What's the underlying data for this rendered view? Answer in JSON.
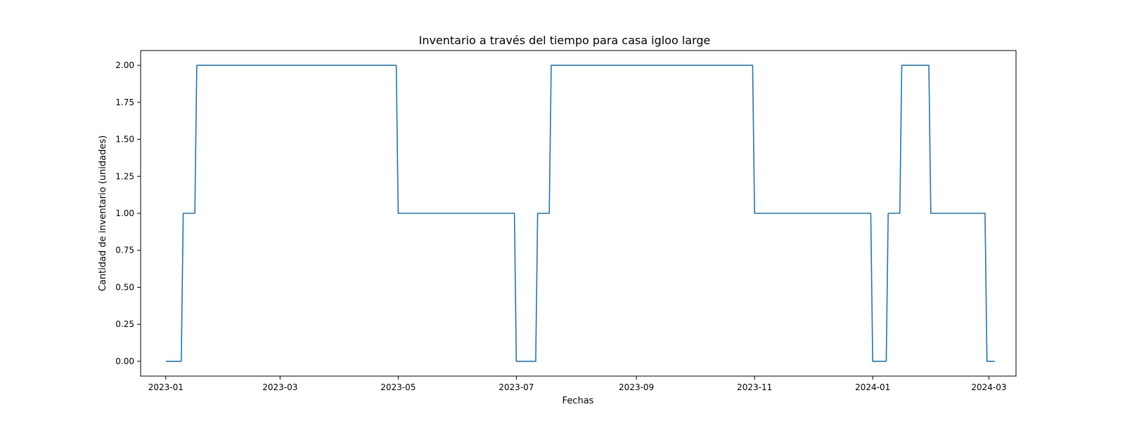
{
  "chart_data": {
    "type": "line",
    "title": "Inventario a través del tiempo para casa igloo large",
    "xlabel": "Fechas",
    "ylabel": "Cantidad de inventario (unidades)",
    "x_axis_type": "date",
    "xlim": [
      "2022-12-19",
      "2024-03-15"
    ],
    "ylim": [
      -0.1,
      2.1
    ],
    "x_ticks": [
      "2023-01",
      "2023-03",
      "2023-05",
      "2023-07",
      "2023-09",
      "2023-11",
      "2024-01",
      "2024-03"
    ],
    "y_ticks": [
      "0.00",
      "0.25",
      "0.50",
      "0.75",
      "1.00",
      "1.25",
      "1.50",
      "1.75",
      "2.00"
    ],
    "grid": false,
    "legend": false,
    "series": [
      {
        "color": "#1f77b4",
        "points": [
          [
            "2023-01-01",
            0
          ],
          [
            "2023-01-09",
            0
          ],
          [
            "2023-01-10",
            1
          ],
          [
            "2023-01-16",
            1
          ],
          [
            "2023-01-17",
            2
          ],
          [
            "2023-04-30",
            2
          ],
          [
            "2023-05-01",
            1
          ],
          [
            "2023-06-30",
            1
          ],
          [
            "2023-07-01",
            0
          ],
          [
            "2023-07-11",
            0
          ],
          [
            "2023-07-12",
            1
          ],
          [
            "2023-07-18",
            1
          ],
          [
            "2023-07-19",
            2
          ],
          [
            "2023-10-31",
            2
          ],
          [
            "2023-11-01",
            1
          ],
          [
            "2023-12-31",
            1
          ],
          [
            "2024-01-01",
            0
          ],
          [
            "2024-01-08",
            0
          ],
          [
            "2024-01-09",
            1
          ],
          [
            "2024-01-15",
            1
          ],
          [
            "2024-01-16",
            2
          ],
          [
            "2024-01-30",
            2
          ],
          [
            "2024-01-31",
            1
          ],
          [
            "2024-02-28",
            1
          ],
          [
            "2024-02-29",
            0
          ],
          [
            "2024-03-04",
            0
          ]
        ]
      }
    ]
  }
}
